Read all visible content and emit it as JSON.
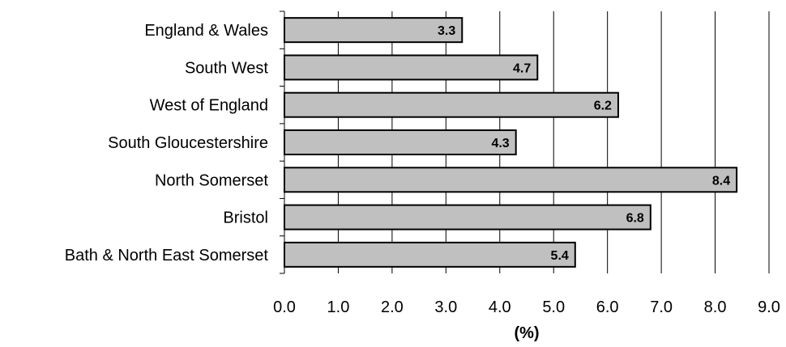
{
  "chart_data": {
    "type": "bar",
    "orientation": "horizontal",
    "categories": [
      "England & Wales",
      "South West",
      "West of England",
      "South Gloucestershire",
      "North Somerset",
      "Bristol",
      "Bath & North East Somerset"
    ],
    "values": [
      3.3,
      4.7,
      6.2,
      4.3,
      8.4,
      6.8,
      5.4
    ],
    "data_labels": [
      "3.3",
      "4.7",
      "6.2",
      "4.3",
      "8.4",
      "6.8",
      "5.4"
    ],
    "xlabel": "(%)",
    "ylabel": "",
    "xlim": [
      0,
      9
    ],
    "xticks": [
      "0.0",
      "1.0",
      "2.0",
      "3.0",
      "4.0",
      "5.0",
      "6.0",
      "7.0",
      "8.0",
      "9.0"
    ],
    "grid": "vertical",
    "colors": {
      "bar_fill": "#c0c0c0",
      "bar_stroke": "#000000",
      "grid": "#000000"
    }
  }
}
